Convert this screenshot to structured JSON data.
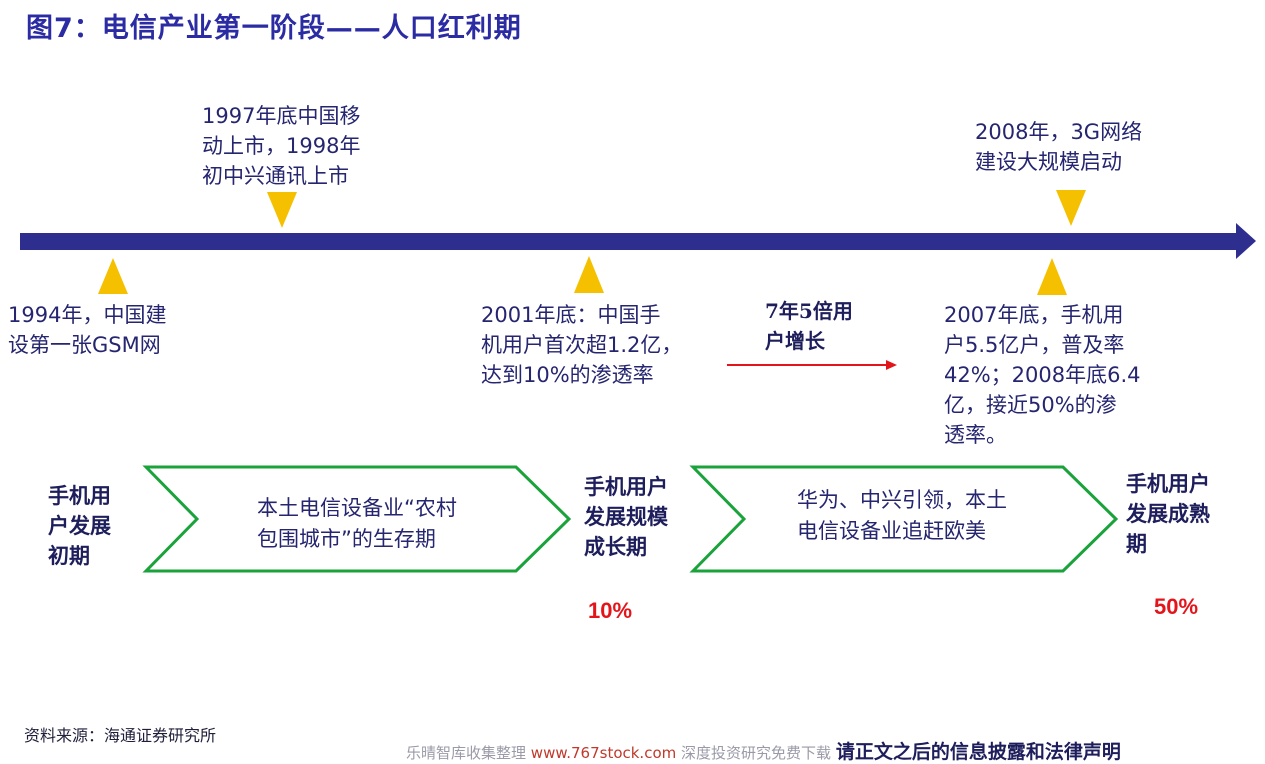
{
  "title": "图7：电信产业第一阶段——人口红利期",
  "events_top": [
    {
      "text": "1997年底中国移\n动上市，1998年\n初中兴通讯上市"
    },
    {
      "text": "2008年，3G网络\n建设大规模启动"
    }
  ],
  "events_bottom": [
    {
      "text": "1994年，中国建\n设第一张GSM网"
    },
    {
      "text": "2001年底：中国手\n机用户首次超1.2亿，\n达到10%的渗透率"
    },
    {
      "text": "2007年底，手机用\n户5.5亿户，普及率\n42%；2008年底6.4\n亿，接近50%的渗\n透率。"
    }
  ],
  "growth_note": "7年5倍用\n户增长",
  "stages": [
    {
      "label": "手机用\n户发展\n初期"
    },
    {
      "label": "手机用户\n发展规模\n成长期",
      "rate": "10%"
    },
    {
      "label": "手机用户\n发展成熟\n期",
      "rate": "50%"
    }
  ],
  "arrows": [
    {
      "text": "本土电信设备业“农村\n包围城市”的生存期"
    },
    {
      "text": "华为、中兴引领，本土\n电信设备业追赶欧美"
    }
  ],
  "source": "资料来源：海通证券研究所",
  "footer": {
    "left": "乐晴智库收集整理",
    "url": "www.767stock.com",
    "middle": "深度投资研究免费下载",
    "decl": "请正文之后的信息披露和法律声明"
  },
  "colors": {
    "timeline": "#2e2e8f",
    "marker": "#f5c000",
    "arrow_outline": "#1aa33a",
    "growth_arrow": "#e3151b",
    "highlight": "#e3151b"
  }
}
